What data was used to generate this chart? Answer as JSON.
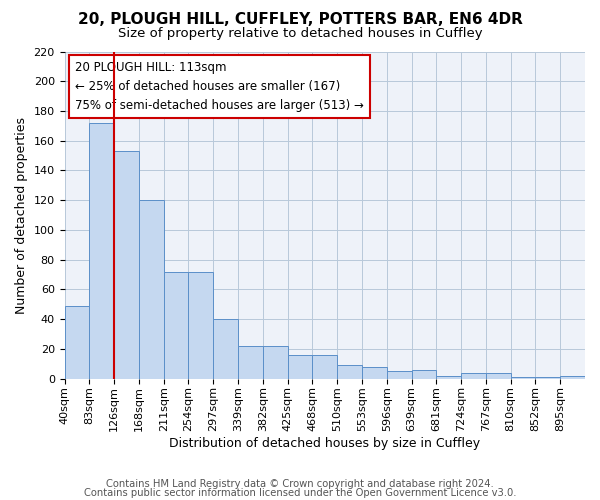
{
  "title": "20, PLOUGH HILL, CUFFLEY, POTTERS BAR, EN6 4DR",
  "subtitle": "Size of property relative to detached houses in Cuffley",
  "xlabel": "Distribution of detached houses by size in Cuffley",
  "ylabel": "Number of detached properties",
  "bin_labels": [
    "40sqm",
    "83sqm",
    "126sqm",
    "168sqm",
    "211sqm",
    "254sqm",
    "297sqm",
    "339sqm",
    "382sqm",
    "425sqm",
    "468sqm",
    "510sqm",
    "553sqm",
    "596sqm",
    "639sqm",
    "681sqm",
    "724sqm",
    "767sqm",
    "810sqm",
    "852sqm",
    "895sqm"
  ],
  "bar_heights": [
    49,
    172,
    153,
    120,
    72,
    72,
    40,
    22,
    22,
    16,
    16,
    9,
    8,
    5,
    6,
    2,
    4,
    4,
    1,
    1,
    2
  ],
  "bar_color": "#c5d8f0",
  "bar_edge_color": "#5b8fc9",
  "vline_x": 2.0,
  "vline_color": "#cc0000",
  "ylim": [
    0,
    220
  ],
  "yticks": [
    0,
    20,
    40,
    60,
    80,
    100,
    120,
    140,
    160,
    180,
    200,
    220
  ],
  "annotation_title": "20 PLOUGH HILL: 113sqm",
  "annotation_line1": "← 25% of detached houses are smaller (167)",
  "annotation_line2": "75% of semi-detached houses are larger (513) →",
  "footer1": "Contains HM Land Registry data © Crown copyright and database right 2024.",
  "footer2": "Contains public sector information licensed under the Open Government Licence v3.0.",
  "background_color": "#eef2f9",
  "grid_color": "#b8c8da",
  "title_fontsize": 11,
  "subtitle_fontsize": 9.5,
  "axis_label_fontsize": 9,
  "tick_fontsize": 8,
  "footer_fontsize": 7.2,
  "annotation_fontsize": 8.5
}
